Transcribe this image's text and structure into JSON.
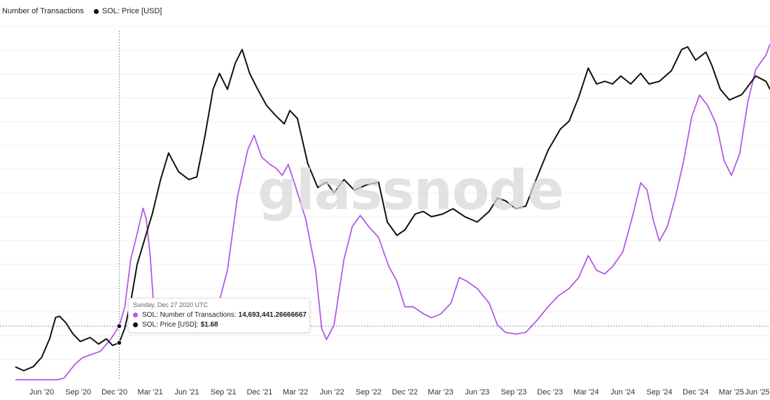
{
  "legend": {
    "items": [
      {
        "label": "Number of Transactions",
        "color": "#b35ae8"
      },
      {
        "label": "SOL: Price [USD]",
        "color": "#111111"
      }
    ]
  },
  "watermark": "glassnode",
  "tooltip": {
    "date": "Sunday, Dec 27 2020 UTC",
    "rows": [
      {
        "label": "SOL: Number of Transactions:",
        "value": "14,693,441.26666667",
        "color": "#b35ae8"
      },
      {
        "label": "SOL: Price [USD]:",
        "value": "$1.68",
        "color": "#111111"
      }
    ]
  },
  "chart_data": {
    "type": "line",
    "x_ticks": [
      "Jun '20",
      "Sep '20",
      "Dec '20",
      "Mar '21",
      "Jun '21",
      "Sep '21",
      "Dec '21",
      "Mar '22",
      "Jun '22",
      "Sep '22",
      "Dec '22",
      "Mar '23",
      "Jun '23",
      "Sep '23",
      "Dec '23",
      "Mar '24",
      "Jun '24",
      "Sep '24",
      "Dec '24",
      "Mar '25",
      "Jun '25"
    ],
    "grid": true,
    "crosshair_date": "2020-12-27",
    "series": [
      {
        "name": "Number of Transactions",
        "color": "#b35ae8",
        "points": [
          [
            "2020-04-10",
            0
          ],
          [
            "2020-05-20",
            0
          ],
          [
            "2020-07-01",
            0
          ],
          [
            "2020-07-25",
            0
          ],
          [
            "2020-08-10",
            0.4
          ],
          [
            "2020-09-05",
            4.0
          ],
          [
            "2020-09-25",
            6.0
          ],
          [
            "2020-10-20",
            7.0
          ],
          [
            "2020-11-10",
            7.8
          ],
          [
            "2020-12-05",
            11.0
          ],
          [
            "2020-12-27",
            14.69
          ],
          [
            "2021-01-10",
            20.0
          ],
          [
            "2021-01-25",
            33.0
          ],
          [
            "2021-02-10",
            40.0
          ],
          [
            "2021-02-25",
            47.0
          ],
          [
            "2021-03-05",
            44.0
          ],
          [
            "2021-03-15",
            34.0
          ],
          [
            "2021-03-25",
            18.0
          ],
          [
            "2021-04-05",
            16.0
          ],
          [
            "2021-05-10",
            14.0
          ],
          [
            "2021-06-05",
            15.5
          ],
          [
            "2021-07-05",
            13.0
          ],
          [
            "2021-08-05",
            15.0
          ],
          [
            "2021-09-01",
            20.0
          ],
          [
            "2021-09-25",
            30.0
          ],
          [
            "2021-10-20",
            50.0
          ],
          [
            "2021-11-15",
            63.0
          ],
          [
            "2021-12-01",
            67.0
          ],
          [
            "2021-12-20",
            61.0
          ],
          [
            "2022-01-10",
            59.0
          ],
          [
            "2022-01-25",
            58.0
          ],
          [
            "2022-02-10",
            56.0
          ],
          [
            "2022-02-25",
            59.0
          ],
          [
            "2022-03-15",
            53.0
          ],
          [
            "2022-04-10",
            44.0
          ],
          [
            "2022-05-05",
            30.0
          ],
          [
            "2022-05-20",
            14.0
          ],
          [
            "2022-06-01",
            11.0
          ],
          [
            "2022-06-20",
            15.0
          ],
          [
            "2022-07-15",
            33.0
          ],
          [
            "2022-08-05",
            42.0
          ],
          [
            "2022-08-25",
            45.0
          ],
          [
            "2022-09-15",
            42.0
          ],
          [
            "2022-10-10",
            39.0
          ],
          [
            "2022-11-05",
            31.0
          ],
          [
            "2022-11-25",
            27.0
          ],
          [
            "2022-12-15",
            20.0
          ],
          [
            "2023-01-05",
            20.0
          ],
          [
            "2023-02-01",
            18.0
          ],
          [
            "2023-02-20",
            17.0
          ],
          [
            "2023-03-15",
            18.0
          ],
          [
            "2023-04-10",
            21.0
          ],
          [
            "2023-05-01",
            28.0
          ],
          [
            "2023-05-20",
            27.0
          ],
          [
            "2023-06-15",
            25.0
          ],
          [
            "2023-07-15",
            21.0
          ],
          [
            "2023-08-05",
            15.0
          ],
          [
            "2023-08-25",
            13.0
          ],
          [
            "2023-09-20",
            12.5
          ],
          [
            "2023-10-15",
            13.0
          ],
          [
            "2023-11-10",
            16.0
          ],
          [
            "2023-12-10",
            20.0
          ],
          [
            "2024-01-05",
            23.0
          ],
          [
            "2024-02-01",
            25.0
          ],
          [
            "2024-02-25",
            28.0
          ],
          [
            "2024-03-20",
            34.0
          ],
          [
            "2024-04-10",
            30.0
          ],
          [
            "2024-04-30",
            29.0
          ],
          [
            "2024-05-20",
            31.0
          ],
          [
            "2024-06-15",
            35.0
          ],
          [
            "2024-07-10",
            45.0
          ],
          [
            "2024-07-30",
            54.0
          ],
          [
            "2024-08-15",
            52.0
          ],
          [
            "2024-08-30",
            44.0
          ],
          [
            "2024-09-15",
            38.0
          ],
          [
            "2024-10-05",
            42.0
          ],
          [
            "2024-10-25",
            50.0
          ],
          [
            "2024-11-15",
            60.0
          ],
          [
            "2024-12-05",
            72.0
          ],
          [
            "2024-12-25",
            78.0
          ],
          [
            "2025-01-15",
            75.0
          ],
          [
            "2025-02-05",
            70.0
          ],
          [
            "2025-02-25",
            60.0
          ],
          [
            "2025-03-15",
            56.0
          ],
          [
            "2025-04-05",
            62.0
          ],
          [
            "2025-04-25",
            76.0
          ],
          [
            "2025-05-15",
            85.0
          ],
          [
            "2025-06-10",
            89.0
          ],
          [
            "2025-06-20",
            92.0
          ]
        ]
      },
      {
        "name": "SOL: Price [USD]",
        "color": "#111111",
        "points": [
          [
            "2020-04-10",
            5.4
          ],
          [
            "2020-05-01",
            4.0
          ],
          [
            "2020-05-25",
            5.5
          ],
          [
            "2020-06-15",
            9.0
          ],
          [
            "2020-07-05",
            16.0
          ],
          [
            "2020-07-20",
            24.0
          ],
          [
            "2020-07-30",
            24.5
          ],
          [
            "2020-08-15",
            22.0
          ],
          [
            "2020-09-01",
            18.0
          ],
          [
            "2020-09-20",
            15.0
          ],
          [
            "2020-10-15",
            16.5
          ],
          [
            "2020-11-05",
            14.0
          ],
          [
            "2020-11-25",
            16.0
          ],
          [
            "2020-12-10",
            13.5
          ],
          [
            "2020-12-27",
            14.5
          ],
          [
            "2021-01-10",
            20.0
          ],
          [
            "2021-01-25",
            30.0
          ],
          [
            "2021-02-10",
            44.0
          ],
          [
            "2021-02-28",
            53.0
          ],
          [
            "2021-03-20",
            63.0
          ],
          [
            "2021-04-10",
            76.0
          ],
          [
            "2021-04-30",
            86.0
          ],
          [
            "2021-05-25",
            79.0
          ],
          [
            "2021-06-20",
            76.0
          ],
          [
            "2021-07-10",
            77.0
          ],
          [
            "2021-07-30",
            92.0
          ],
          [
            "2021-08-20",
            110.0
          ],
          [
            "2021-09-05",
            116.0
          ],
          [
            "2021-09-25",
            110.0
          ],
          [
            "2021-10-15",
            120.0
          ],
          [
            "2021-11-01",
            125.0
          ],
          [
            "2021-11-20",
            116.0
          ],
          [
            "2021-12-10",
            110.0
          ],
          [
            "2022-01-01",
            104.0
          ],
          [
            "2022-01-25",
            100.0
          ],
          [
            "2022-02-15",
            97.0
          ],
          [
            "2022-03-01",
            102.0
          ],
          [
            "2022-03-20",
            99.0
          ],
          [
            "2022-04-15",
            82.0
          ],
          [
            "2022-05-10",
            73.0
          ],
          [
            "2022-06-01",
            75.0
          ],
          [
            "2022-06-20",
            71.0
          ],
          [
            "2022-07-15",
            76.0
          ],
          [
            "2022-08-10",
            72.0
          ],
          [
            "2022-09-10",
            74.0
          ],
          [
            "2022-10-10",
            75.0
          ],
          [
            "2022-11-01",
            60.0
          ],
          [
            "2022-11-25",
            55.0
          ],
          [
            "2022-12-15",
            57.0
          ],
          [
            "2023-01-10",
            63.0
          ],
          [
            "2023-01-30",
            64.0
          ],
          [
            "2023-02-20",
            62.0
          ],
          [
            "2023-03-20",
            63.0
          ],
          [
            "2023-04-15",
            65.0
          ],
          [
            "2023-05-15",
            62.0
          ],
          [
            "2023-06-15",
            60.0
          ],
          [
            "2023-07-15",
            64.0
          ],
          [
            "2023-08-05",
            69.0
          ],
          [
            "2023-08-25",
            68.0
          ],
          [
            "2023-09-20",
            65.0
          ],
          [
            "2023-10-15",
            66.0
          ],
          [
            "2023-11-10",
            76.0
          ],
          [
            "2023-12-10",
            87.0
          ],
          [
            "2024-01-10",
            95.0
          ],
          [
            "2024-02-01",
            98.0
          ],
          [
            "2024-02-25",
            107.0
          ],
          [
            "2024-03-20",
            118.0
          ],
          [
            "2024-04-10",
            112.0
          ],
          [
            "2024-05-01",
            113.0
          ],
          [
            "2024-05-20",
            112.0
          ],
          [
            "2024-06-10",
            115.0
          ],
          [
            "2024-07-05",
            112.0
          ],
          [
            "2024-07-30",
            116.0
          ],
          [
            "2024-08-20",
            112.0
          ],
          [
            "2024-09-15",
            113.0
          ],
          [
            "2024-10-15",
            117.0
          ],
          [
            "2024-11-10",
            125.0
          ],
          [
            "2024-11-25",
            126.0
          ],
          [
            "2024-12-15",
            121.0
          ],
          [
            "2025-01-10",
            124.0
          ],
          [
            "2025-01-25",
            119.0
          ],
          [
            "2025-02-15",
            110.0
          ],
          [
            "2025-03-10",
            106.0
          ],
          [
            "2025-04-10",
            108.0
          ],
          [
            "2025-05-15",
            115.0
          ],
          [
            "2025-06-10",
            113.0
          ],
          [
            "2025-06-20",
            110.0
          ]
        ]
      }
    ]
  }
}
